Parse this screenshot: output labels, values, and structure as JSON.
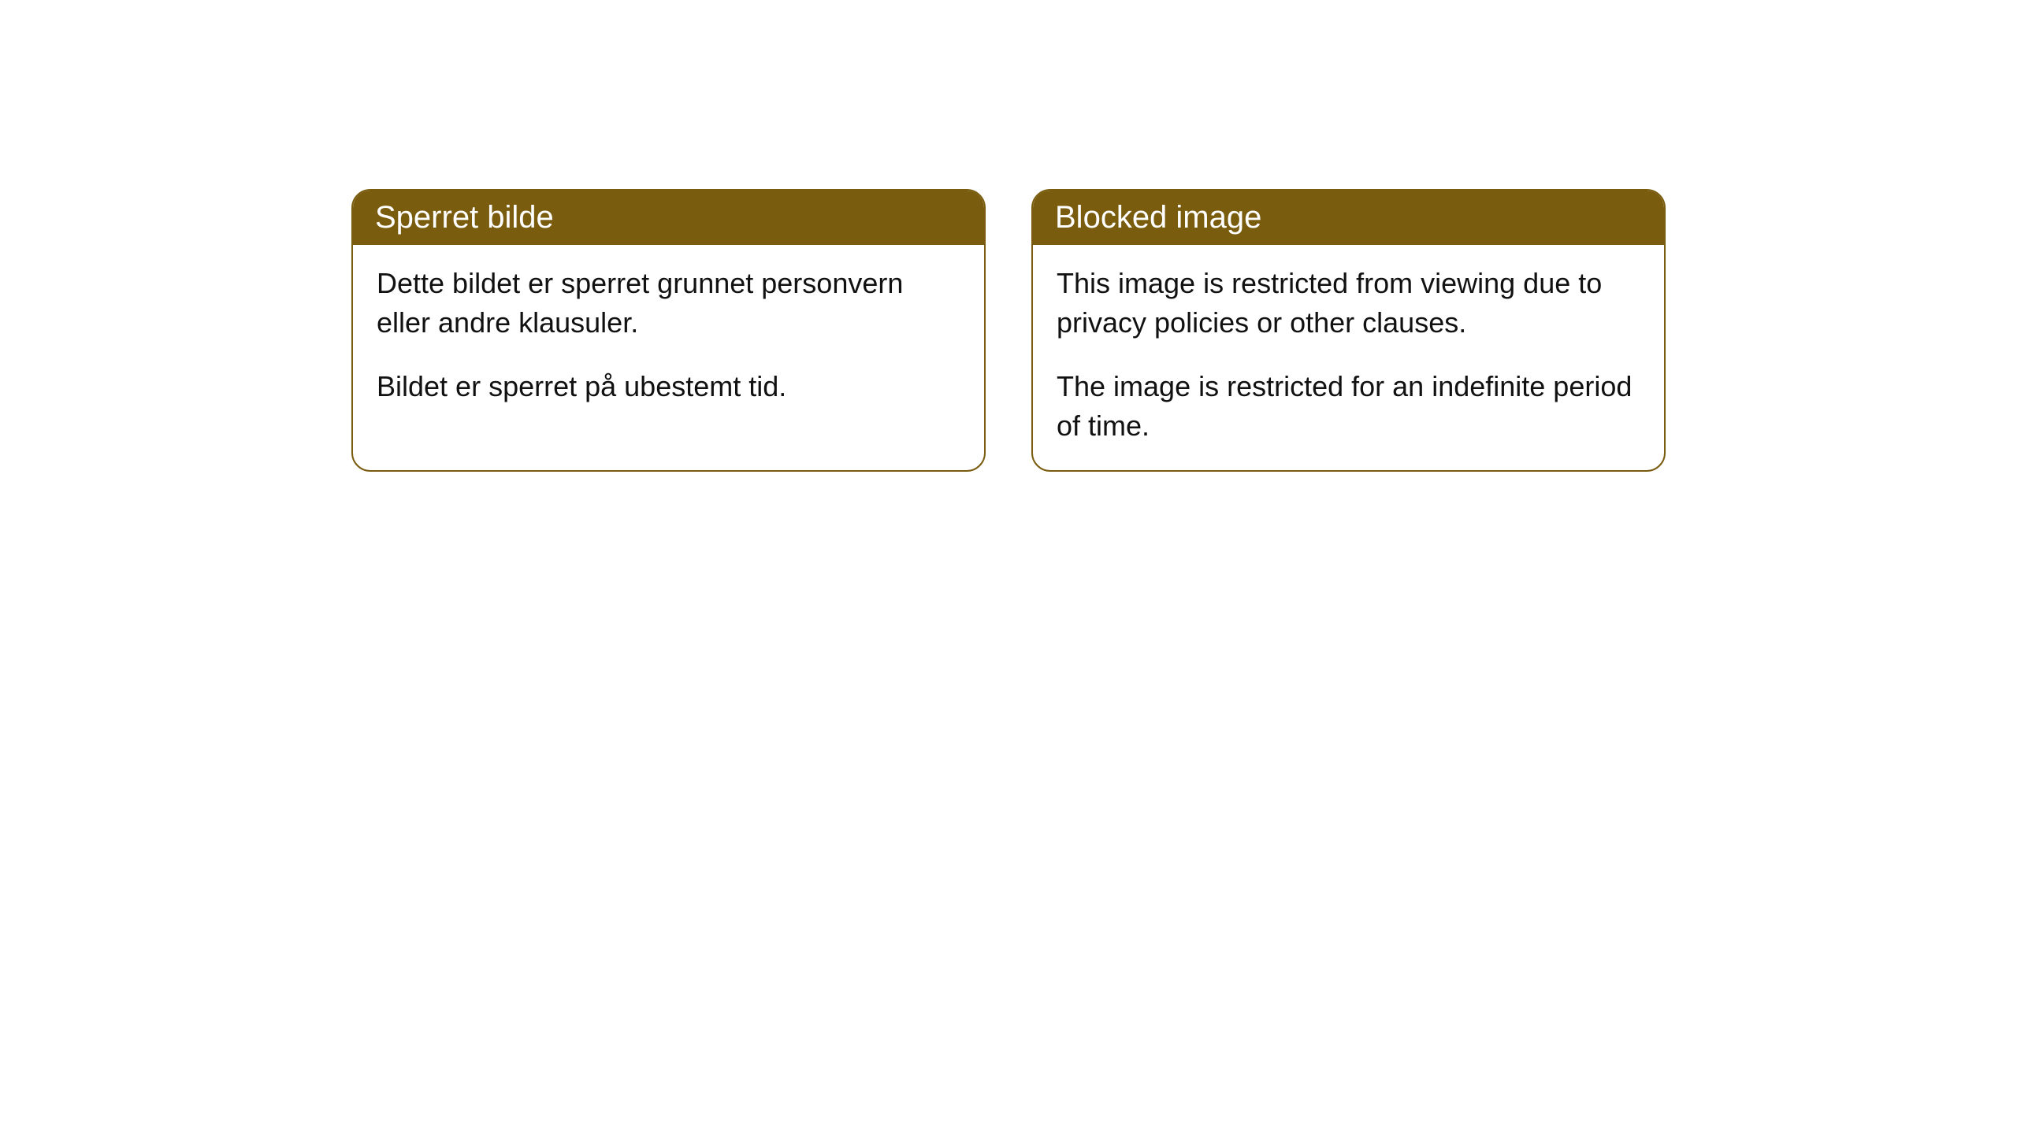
{
  "cards": [
    {
      "title": "Sperret bilde",
      "para1": "Dette bildet er sperret grunnet personvern eller andre klausuler.",
      "para2": "Bildet er sperret på ubestemt tid."
    },
    {
      "title": "Blocked image",
      "para1": "This image is restricted from viewing due to privacy policies or other clauses.",
      "para2": "The image is restricted for an indefinite period of time."
    }
  ],
  "style": {
    "header_bg": "#7a5c0f",
    "header_color": "#ffffff",
    "border_color": "#7a5c0f",
    "border_radius": 24,
    "card_bg": "#ffffff",
    "body_color": "#111111",
    "title_fontsize": 40,
    "body_fontsize": 36
  }
}
